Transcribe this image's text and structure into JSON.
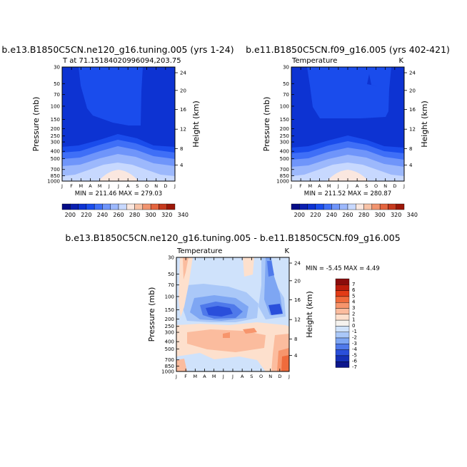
{
  "chart_data": [
    {
      "type": "contour",
      "title": "b.e13.B1850C5CN.ne120_g16.tuning.005 (yrs 1-24)",
      "subtitle_left": "T at 71.15184020996094,203.75",
      "ylabel": "Pressure (mb)",
      "ylabel_right": "Height (km)",
      "stats": "MIN = 211.46 MAX = 279.03",
      "months": [
        "J",
        "F",
        "M",
        "A",
        "M",
        "J",
        "J",
        "A",
        "S",
        "O",
        "N",
        "D",
        "J"
      ],
      "pressure_ticks": [
        "30",
        "50",
        "70",
        "100",
        "150",
        "200",
        "250",
        "300",
        "400",
        "500",
        "700",
        "850",
        "1000"
      ],
      "height_ticks": [
        "24",
        "20",
        "16",
        "12",
        "8",
        "4"
      ],
      "colorbar_labels": [
        "200",
        "220",
        "240",
        "260",
        "280",
        "300",
        "320",
        "340"
      ]
    },
    {
      "type": "contour",
      "title": "b.e11.B1850C5CN.f09_g16.005 (yrs 402-421)",
      "subtitle_left": "Temperature",
      "subtitle_right": "K",
      "ylabel": "Pressure (mb)",
      "ylabel_right": "Height (km)",
      "stats": "MIN = 211.52 MAX = 280.87",
      "months": [
        "J",
        "F",
        "M",
        "A",
        "M",
        "J",
        "J",
        "A",
        "S",
        "O",
        "N",
        "D",
        "J"
      ],
      "pressure_ticks": [
        "30",
        "50",
        "70",
        "100",
        "150",
        "200",
        "250",
        "300",
        "400",
        "500",
        "700",
        "850",
        "1000"
      ],
      "height_ticks": [
        "24",
        "20",
        "16",
        "12",
        "8",
        "4"
      ],
      "colorbar_labels": [
        "200",
        "220",
        "240",
        "260",
        "280",
        "300",
        "320",
        "340"
      ]
    },
    {
      "type": "contour",
      "title": "b.e13.B1850C5CN.ne120_g16.tuning.005 - b.e11.B1850C5CN.f09_g16.005",
      "subtitle_left": "Temperature",
      "subtitle_right": "K",
      "ylabel": "Pressure (mb)",
      "ylabel_right": "Height (km)",
      "stats": "MIN =   -5.45 MAX =    4.49",
      "months": [
        "J",
        "F",
        "M",
        "A",
        "M",
        "J",
        "J",
        "A",
        "S",
        "O",
        "N",
        "D",
        "J"
      ],
      "pressure_ticks": [
        "30",
        "50",
        "70",
        "100",
        "150",
        "200",
        "250",
        "300",
        "400",
        "500",
        "700",
        "850",
        "1000"
      ],
      "height_ticks": [
        "24",
        "20",
        "16",
        "12",
        "8",
        "4"
      ],
      "colorbar_labels": [
        "7",
        "6",
        "5",
        "4",
        "3",
        "2",
        "1",
        "0",
        "-1",
        "-2",
        "-3",
        "-4",
        "-5",
        "-6",
        "-7"
      ]
    }
  ],
  "colors": {
    "abs_scale": [
      "#050c87",
      "#0a1fb0",
      "#0d33d2",
      "#1a4cec",
      "#3f6ff7",
      "#6f95fa",
      "#9cb8fc",
      "#c7d8fe",
      "#fae7df",
      "#f8c2a6",
      "#f1946f",
      "#e4653f",
      "#c63a1d",
      "#9c1708"
    ],
    "diff_scale": [
      "#8a0c0c",
      "#bc1c0c",
      "#e23b16",
      "#f06b3c",
      "#f7956c",
      "#fbbc9e",
      "#fde0cd",
      "#f5f2ee",
      "#cfe2fb",
      "#aac8f8",
      "#7ea6f3",
      "#4f79ea",
      "#2a4fdb",
      "#1530b7",
      "#0c168c"
    ]
  }
}
